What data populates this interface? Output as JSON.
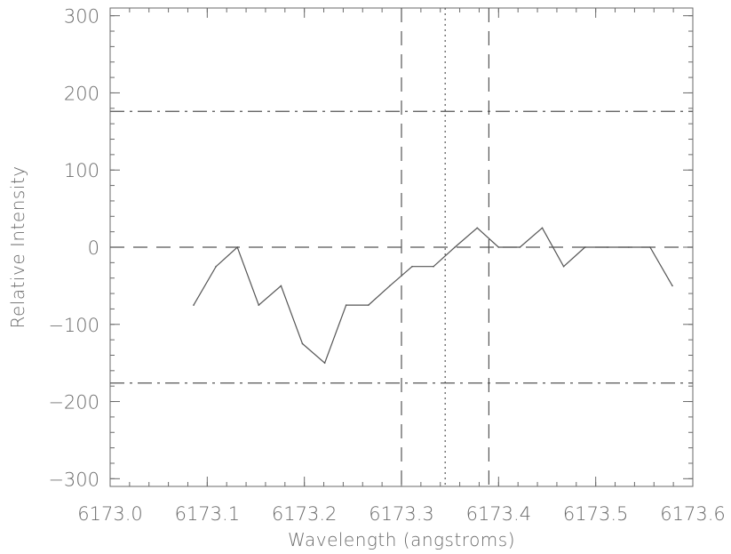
{
  "chart_data": {
    "type": "line",
    "xlabel": "Wavelength (angstroms)",
    "ylabel": "Relative Intensity",
    "xlim": [
      6173.0,
      6173.6
    ],
    "ylim": [
      -310,
      310
    ],
    "x_ticks": [
      "6173.0",
      "6173.1",
      "6173.2",
      "6173.3",
      "6173.4",
      "6173.5",
      "6173.6"
    ],
    "x_tick_values": [
      6173.0,
      6173.1,
      6173.2,
      6173.3,
      6173.4,
      6173.5,
      6173.6
    ],
    "y_ticks": [
      "300",
      "200",
      "100",
      "0",
      "−100",
      "−200",
      "−300"
    ],
    "y_tick_values": [
      300,
      200,
      100,
      0,
      -100,
      -200,
      -300
    ],
    "grid": false,
    "series": [
      {
        "x": [
          6173.086,
          6173.109,
          6173.131,
          6173.153,
          6173.176,
          6173.198,
          6173.221,
          6173.243,
          6173.266,
          6173.288,
          6173.311,
          6173.333,
          6173.355,
          6173.378,
          6173.4,
          6173.422,
          6173.445,
          6173.467,
          6173.489,
          6173.512,
          6173.534,
          6173.556,
          6173.579
        ],
        "y": [
          -75,
          -25,
          0,
          -75,
          -50,
          -125,
          -150,
          -75,
          -75,
          -50,
          -25,
          -25,
          0,
          25,
          0,
          0,
          25,
          -25,
          0,
          0,
          0,
          0,
          -50
        ],
        "color": "#555555",
        "style": "solid"
      }
    ],
    "reference_lines": [
      {
        "orientation": "horizontal",
        "value": 0,
        "style": "dashed"
      },
      {
        "orientation": "horizontal",
        "value": 176,
        "style": "dashdot"
      },
      {
        "orientation": "horizontal",
        "value": -176,
        "style": "dashdot"
      },
      {
        "orientation": "vertical",
        "value": 6173.3,
        "style": "dashed"
      },
      {
        "orientation": "vertical",
        "value": 6173.345,
        "style": "dotted"
      },
      {
        "orientation": "vertical",
        "value": 6173.39,
        "style": "dashed"
      }
    ],
    "colors": {
      "axis": "#6a6a6a",
      "line": "#555555",
      "background": "#ffffff"
    }
  }
}
